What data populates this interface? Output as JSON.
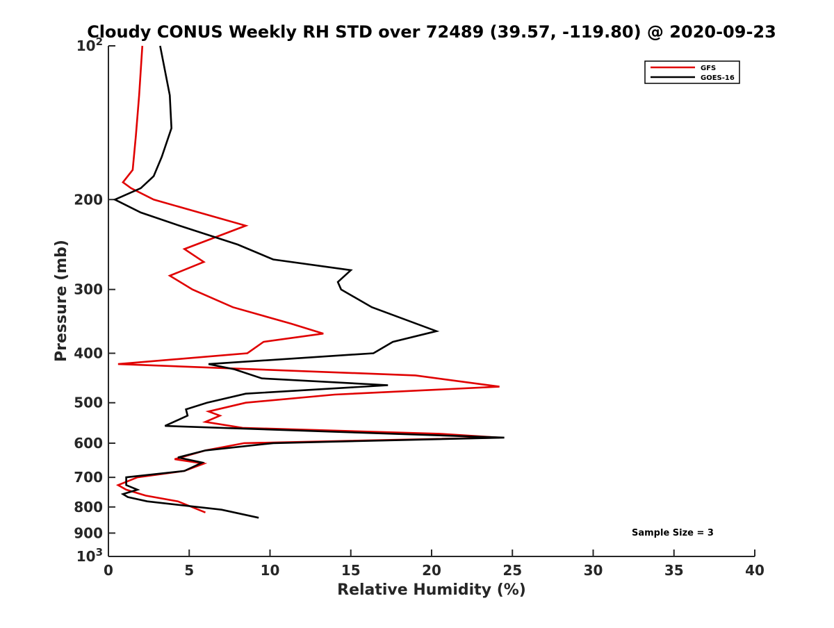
{
  "chart_data": {
    "type": "line",
    "title": "Cloudy CONUS Weekly RH STD over 72489 (39.57, -119.80) @ 2020-09-23",
    "xlabel": "Relative Humidity (%)",
    "ylabel": "Pressure (mb)",
    "xlim": [
      0,
      40
    ],
    "ylim": [
      100,
      1000
    ],
    "y_scale": "log",
    "y_reversed": true,
    "grid": false,
    "legend_position": "top-right",
    "x_ticks": [
      0,
      5,
      10,
      15,
      20,
      25,
      30,
      35,
      40
    ],
    "y_ticks": [
      {
        "value": 100,
        "label": "10",
        "sup": "2"
      },
      {
        "value": 200,
        "label": "200",
        "sup": ""
      },
      {
        "value": 300,
        "label": "300",
        "sup": ""
      },
      {
        "value": 400,
        "label": "400",
        "sup": ""
      },
      {
        "value": 500,
        "label": "500",
        "sup": ""
      },
      {
        "value": 600,
        "label": "600",
        "sup": ""
      },
      {
        "value": 700,
        "label": "700",
        "sup": ""
      },
      {
        "value": 800,
        "label": "800",
        "sup": ""
      },
      {
        "value": 900,
        "label": "900",
        "sup": ""
      },
      {
        "value": 1000,
        "label": "10",
        "sup": "3"
      }
    ],
    "series": [
      {
        "name": "GFS",
        "color": "#e00000",
        "points": [
          [
            2.1,
            100
          ],
          [
            1.9,
            125
          ],
          [
            1.7,
            150
          ],
          [
            1.5,
            175
          ],
          [
            0.9,
            185
          ],
          [
            1.4,
            190
          ],
          [
            2.8,
            200
          ],
          [
            8.5,
            225
          ],
          [
            4.7,
            250
          ],
          [
            5.9,
            265
          ],
          [
            3.8,
            282
          ],
          [
            5.2,
            300
          ],
          [
            7.7,
            325
          ],
          [
            11.3,
            350
          ],
          [
            13.3,
            366
          ],
          [
            9.6,
            380
          ],
          [
            8.6,
            400
          ],
          [
            0.6,
            420
          ],
          [
            19.0,
            442
          ],
          [
            24.2,
            465
          ],
          [
            14.0,
            482
          ],
          [
            8.5,
            500
          ],
          [
            6.2,
            520
          ],
          [
            6.9,
            530
          ],
          [
            6.0,
            545
          ],
          [
            8.3,
            560
          ],
          [
            20.5,
            575
          ],
          [
            24.2,
            585
          ],
          [
            8.4,
            600
          ],
          [
            6.0,
            620
          ],
          [
            4.1,
            645
          ],
          [
            5.9,
            658
          ],
          [
            4.7,
            680
          ],
          [
            1.8,
            700
          ],
          [
            0.6,
            725
          ],
          [
            1.1,
            740
          ],
          [
            2.3,
            760
          ],
          [
            4.3,
            780
          ],
          [
            6.0,
            820
          ]
        ]
      },
      {
        "name": "GOES-16",
        "color": "#000000",
        "points": [
          [
            3.2,
            100
          ],
          [
            3.8,
            125
          ],
          [
            3.9,
            145
          ],
          [
            3.3,
            165
          ],
          [
            2.8,
            180
          ],
          [
            2.0,
            190
          ],
          [
            0.4,
            200
          ],
          [
            2.0,
            212
          ],
          [
            4.4,
            225
          ],
          [
            8.0,
            245
          ],
          [
            10.2,
            262
          ],
          [
            15.0,
            275
          ],
          [
            14.2,
            290
          ],
          [
            14.4,
            300
          ],
          [
            16.3,
            325
          ],
          [
            20.3,
            362
          ],
          [
            17.6,
            380
          ],
          [
            16.4,
            400
          ],
          [
            6.2,
            420
          ],
          [
            7.8,
            430
          ],
          [
            9.5,
            448
          ],
          [
            17.3,
            462
          ],
          [
            8.5,
            480
          ],
          [
            6.1,
            500
          ],
          [
            4.8,
            515
          ],
          [
            4.9,
            530
          ],
          [
            3.5,
            555
          ],
          [
            24.5,
            585
          ],
          [
            10.2,
            600
          ],
          [
            6.0,
            620
          ],
          [
            4.3,
            640
          ],
          [
            5.8,
            655
          ],
          [
            4.7,
            680
          ],
          [
            1.1,
            700
          ],
          [
            1.1,
            725
          ],
          [
            1.8,
            740
          ],
          [
            0.9,
            755
          ],
          [
            1.2,
            765
          ],
          [
            2.4,
            780
          ],
          [
            7.0,
            810
          ],
          [
            9.3,
            840
          ]
        ]
      }
    ],
    "annotations": [
      {
        "text": "Sample Size = 3"
      }
    ]
  }
}
